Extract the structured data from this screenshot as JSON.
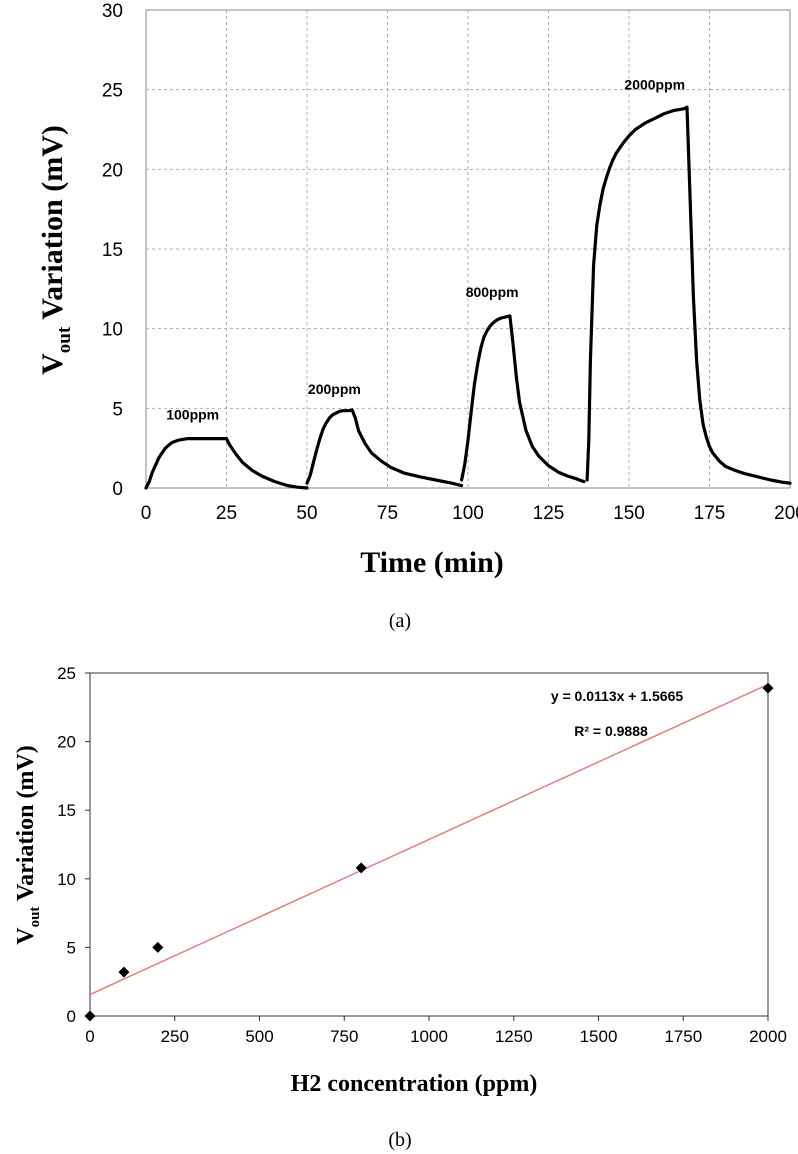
{
  "chart_data": [
    {
      "type": "line",
      "caption": "(a)",
      "xlabel": "Time (min)",
      "ylabel_main": "V",
      "ylabel_sub": "out",
      "ylabel_rest": " Variation (mV)",
      "xlim": [
        0,
        200
      ],
      "ylim": [
        0,
        30
      ],
      "xticks": [
        "0",
        "25",
        "50",
        "75",
        "100",
        "125",
        "150",
        "175",
        "200"
      ],
      "yticks": [
        "0",
        "5",
        "10",
        "15",
        "20",
        "25",
        "30"
      ],
      "grid": "dashed",
      "series": [
        {
          "color": "#000000",
          "x": [
            0,
            1,
            2,
            4,
            6,
            8,
            10,
            13,
            16,
            20,
            24,
            25,
            26,
            28,
            30,
            33,
            36,
            40,
            44,
            47,
            50
          ],
          "y": [
            0.0,
            0.4,
            1.0,
            1.9,
            2.5,
            2.85,
            3.0,
            3.1,
            3.1,
            3.1,
            3.1,
            3.1,
            2.7,
            2.1,
            1.6,
            1.1,
            0.75,
            0.4,
            0.15,
            0.05,
            0.0
          ]
        },
        {
          "color": "#000000",
          "x": [
            50,
            51,
            52,
            53,
            54,
            55,
            56,
            57,
            58,
            59,
            60,
            61,
            62,
            63,
            64,
            65,
            66,
            68,
            70,
            73,
            76,
            80,
            85,
            90,
            95,
            98
          ],
          "y": [
            0.3,
            0.8,
            1.6,
            2.4,
            3.1,
            3.7,
            4.1,
            4.4,
            4.6,
            4.7,
            4.8,
            4.85,
            4.85,
            4.85,
            4.9,
            4.4,
            3.6,
            2.8,
            2.2,
            1.7,
            1.3,
            0.95,
            0.7,
            0.5,
            0.3,
            0.15
          ]
        },
        {
          "color": "#000000",
          "x": [
            98,
            99,
            100,
            101,
            102,
            103,
            104,
            105,
            106,
            107,
            108,
            109,
            110,
            111,
            112,
            113,
            114,
            115,
            116,
            118,
            120,
            122,
            125,
            128,
            131,
            134,
            136
          ],
          "y": [
            0.5,
            1.5,
            3.0,
            4.8,
            6.5,
            7.8,
            8.8,
            9.5,
            9.9,
            10.2,
            10.4,
            10.55,
            10.65,
            10.7,
            10.75,
            10.8,
            9.0,
            7.0,
            5.4,
            3.6,
            2.6,
            2.0,
            1.4,
            1.0,
            0.75,
            0.55,
            0.4
          ]
        },
        {
          "color": "#000000",
          "x": [
            137,
            137.5,
            138,
            139,
            140,
            141,
            142,
            143,
            144,
            145,
            146,
            148,
            150,
            152,
            155,
            158,
            161,
            164,
            167,
            168,
            169,
            170,
            171,
            172,
            173,
            174,
            175,
            176,
            178,
            180,
            183,
            186,
            190,
            194,
            198,
            200
          ],
          "y": [
            0.5,
            3.0,
            8.0,
            14.0,
            16.5,
            17.8,
            18.8,
            19.5,
            20.1,
            20.6,
            21.0,
            21.6,
            22.1,
            22.5,
            22.9,
            23.2,
            23.5,
            23.7,
            23.8,
            23.9,
            18.0,
            12.0,
            8.0,
            5.5,
            4.0,
            3.2,
            2.6,
            2.2,
            1.7,
            1.35,
            1.1,
            0.9,
            0.7,
            0.5,
            0.35,
            0.3
          ]
        }
      ],
      "annotations": [
        {
          "text": "100ppm",
          "x": 14.5,
          "y": 4.3
        },
        {
          "text": "200ppm",
          "x": 58.5,
          "y": 5.9
        },
        {
          "text": "800ppm",
          "x": 107.5,
          "y": 12.0
        },
        {
          "text": "2000ppm",
          "x": 158,
          "y": 25.0
        }
      ]
    },
    {
      "type": "scatter",
      "caption": "(b)",
      "xlabel": "H2 concentration (ppm)",
      "ylabel_main": "V",
      "ylabel_sub": "out",
      "ylabel_rest": " Variation (mV)",
      "xlim": [
        0,
        2000
      ],
      "ylim": [
        0,
        25
      ],
      "xticks": [
        "0",
        "250",
        "500",
        "750",
        "1000",
        "1250",
        "1500",
        "1750",
        "2000"
      ],
      "yticks": [
        "0",
        "5",
        "10",
        "15",
        "20",
        "25"
      ],
      "grid": "none",
      "points": {
        "x": [
          0,
          100,
          200,
          800,
          2000
        ],
        "y": [
          0,
          3.2,
          5.0,
          10.8,
          23.9
        ]
      },
      "trendline": {
        "slope": 0.0113,
        "intercept": 1.5665,
        "color": "#e08080"
      },
      "equation": "y = 0.0113x + 1.5665",
      "r2": "R² = 0.9888"
    }
  ]
}
